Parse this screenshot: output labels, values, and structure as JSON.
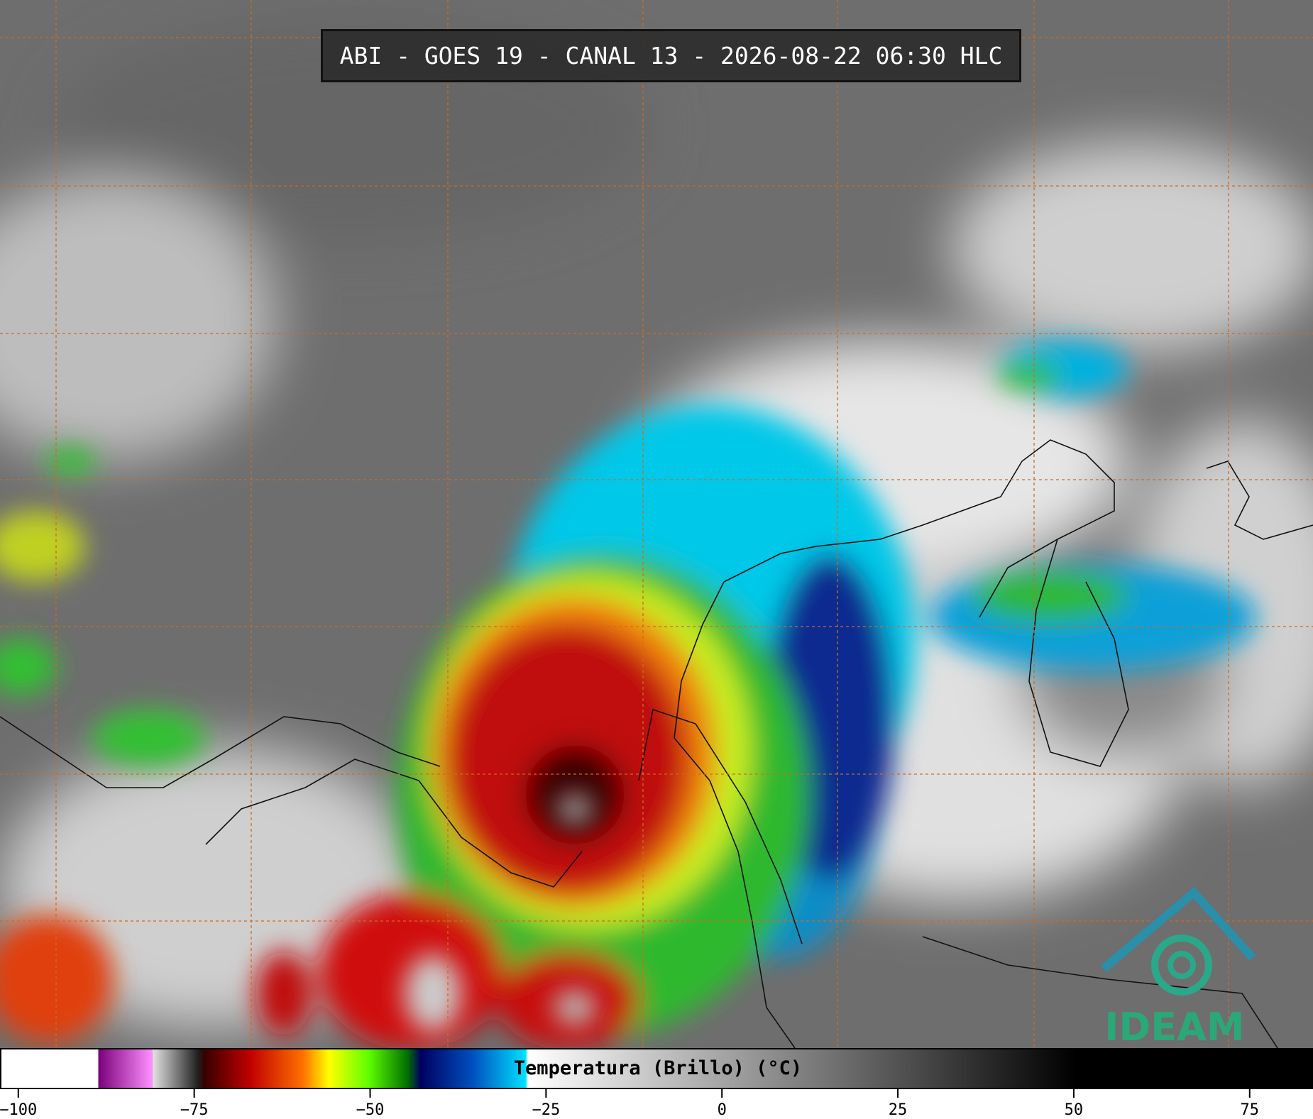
{
  "title": "ABI - GOES 19 - CANAL 13 - 2026-08-22 06:30 HLC",
  "colorbar": {
    "label": "Temperatura (Brillo) (°C)",
    "xlim": [
      -102.6,
      84
    ],
    "xticks": [
      {
        "value": -100,
        "label": "−100"
      },
      {
        "value": -75,
        "label": "−75"
      },
      {
        "value": -50,
        "label": "−50"
      },
      {
        "value": -25,
        "label": "−25"
      },
      0,
      25,
      50,
      75
    ]
  },
  "logo": "IDEAM"
}
